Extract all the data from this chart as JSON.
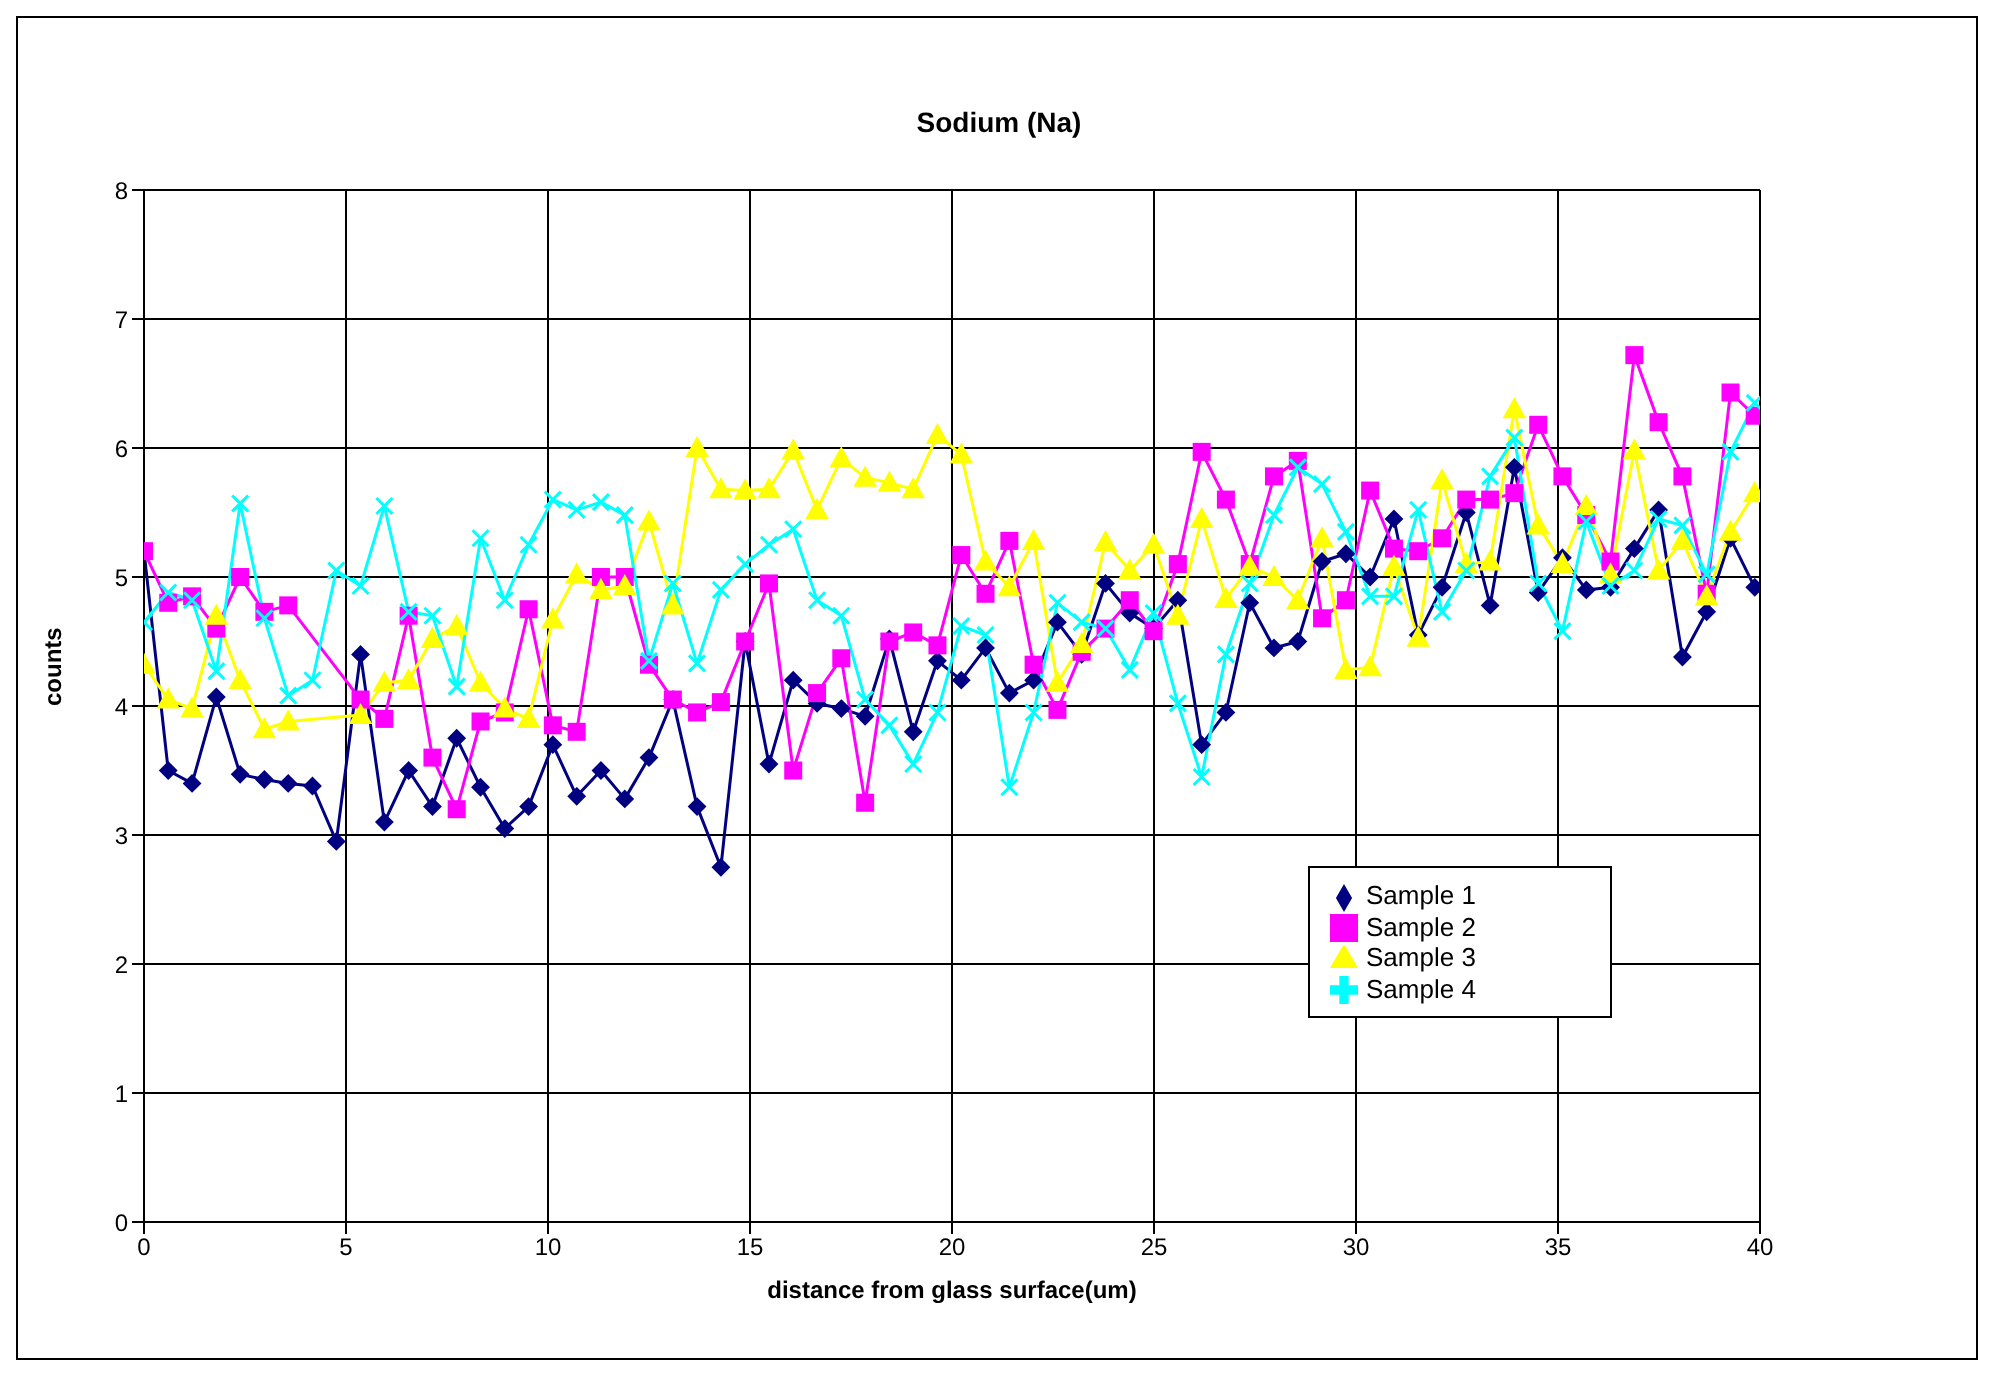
{
  "chart_data": {
    "type": "line",
    "title": "Sodium (Na)",
    "xlabel": "distance from glass surface(um)",
    "ylabel": "counts",
    "xlim": [
      0,
      40
    ],
    "xticks": [
      0,
      5,
      10,
      15,
      20,
      25,
      30,
      35,
      40
    ],
    "ylim": [
      0,
      8
    ],
    "yticks": [
      0,
      1,
      2,
      3,
      4,
      5,
      6,
      7,
      8
    ],
    "grid": true,
    "legend": "bottom right",
    "line_style": "solid",
    "x": [
      0,
      0.6,
      1.19,
      1.79,
      2.38,
      2.98,
      3.57,
      4.17,
      4.76,
      5.36,
      5.95,
      6.55,
      7.14,
      7.74,
      8.33,
      8.93,
      9.52,
      10.12,
      10.71,
      11.31,
      11.9,
      12.5,
      13.09,
      13.69,
      14.28,
      14.88,
      15.47,
      16.07,
      16.66,
      17.26,
      17.85,
      18.45,
      19.04,
      19.64,
      20.23,
      20.83,
      21.42,
      22.02,
      22.61,
      23.21,
      23.8,
      24.4,
      24.99,
      25.59,
      26.18,
      26.78,
      27.37,
      27.97,
      28.56,
      29.16,
      29.75,
      30.35,
      30.94,
      31.54,
      32.13,
      32.73,
      33.32,
      33.92,
      34.51,
      35.11,
      35.7,
      36.3,
      36.89,
      37.49,
      38.08,
      38.68,
      39.27,
      39.87
    ],
    "series": [
      {
        "name": "Sample 1",
        "color": "#000080",
        "marker": "diamond",
        "values": [
          5.2,
          3.5,
          3.4,
          4.07,
          3.47,
          3.43,
          3.4,
          3.38,
          2.95,
          4.4,
          3.1,
          3.5,
          3.22,
          3.75,
          3.37,
          3.05,
          3.22,
          3.7,
          3.3,
          3.5,
          3.28,
          3.6,
          4.05,
          3.22,
          2.75,
          4.5,
          3.55,
          4.2,
          4.02,
          3.98,
          3.92,
          4.52,
          3.8,
          4.35,
          4.2,
          4.45,
          4.1,
          4.2,
          4.65,
          4.4,
          4.95,
          4.72,
          4.6,
          4.82,
          3.7,
          3.95,
          4.8,
          4.45,
          4.5,
          5.12,
          5.18,
          5.0,
          5.45,
          4.55,
          4.92,
          5.5,
          4.78,
          5.85,
          4.88,
          5.15,
          4.9,
          4.92,
          5.22,
          5.52,
          4.38,
          4.73,
          5.3,
          4.92
        ]
      },
      {
        "name": "Sample 2",
        "color": "#ff00ff",
        "marker": "square",
        "x": [
          0,
          0.6,
          1.19,
          1.79,
          2.38,
          2.98,
          3.57,
          5.36,
          5.95,
          6.55,
          7.14,
          7.74,
          8.33,
          8.93,
          9.52,
          10.12,
          10.71,
          11.31,
          11.9,
          12.5,
          13.09,
          13.69,
          14.28,
          14.88,
          15.47,
          16.07,
          16.66,
          17.26,
          17.85,
          18.45,
          19.04,
          19.64,
          20.23,
          20.83,
          21.42,
          22.02,
          22.61,
          23.21,
          23.8,
          24.4,
          24.99,
          25.59,
          26.18,
          26.78,
          27.37,
          27.97,
          28.56,
          29.16,
          29.75,
          30.35,
          30.94,
          31.54,
          32.13,
          32.73,
          33.32,
          33.92,
          34.51,
          35.11,
          35.7,
          36.3,
          36.89,
          37.49,
          38.08,
          38.68,
          39.27,
          39.87
        ],
        "values": [
          5.2,
          4.8,
          4.85,
          4.6,
          5.0,
          4.73,
          4.78,
          4.05,
          3.9,
          4.7,
          3.6,
          3.2,
          3.88,
          3.95,
          4.75,
          3.85,
          3.8,
          5.0,
          5.0,
          4.32,
          4.05,
          3.95,
          4.03,
          4.5,
          4.95,
          3.5,
          4.1,
          4.37,
          3.25,
          4.5,
          4.57,
          4.47,
          5.17,
          4.87,
          5.28,
          4.32,
          3.97,
          4.42,
          4.6,
          4.82,
          4.58,
          5.1,
          5.97,
          5.6,
          5.1,
          5.78,
          5.9,
          4.68,
          4.82,
          5.67,
          5.22,
          5.2,
          5.3,
          5.6,
          5.6,
          5.65,
          6.18,
          5.78,
          5.48,
          5.12,
          6.72,
          6.2,
          5.78,
          4.87,
          6.43,
          6.25
        ]
      },
      {
        "name": "Sample 3",
        "color": "#ffff00",
        "marker": "triangle",
        "x": [
          0,
          0.6,
          1.19,
          1.79,
          2.38,
          2.98,
          3.57,
          5.36,
          5.95,
          6.55,
          7.14,
          7.74,
          8.33,
          8.93,
          9.52,
          10.12,
          10.71,
          11.31,
          11.9,
          12.5,
          13.09,
          13.69,
          14.28,
          14.88,
          15.47,
          16.07,
          16.66,
          17.26,
          17.85,
          18.45,
          19.04,
          19.64,
          20.23,
          20.83,
          21.42,
          22.02,
          22.61,
          23.21,
          23.8,
          24.4,
          24.99,
          25.59,
          26.18,
          26.78,
          27.37,
          27.97,
          28.56,
          29.16,
          29.75,
          30.35,
          30.94,
          31.54,
          32.13,
          32.73,
          33.32,
          33.92,
          34.51,
          35.11,
          35.7,
          36.3,
          36.89,
          37.49,
          38.08,
          38.68,
          39.27,
          39.87
        ],
        "values": [
          4.32,
          4.05,
          3.98,
          4.7,
          4.2,
          3.82,
          3.88,
          3.93,
          4.18,
          4.2,
          4.52,
          4.62,
          4.18,
          3.98,
          3.9,
          4.67,
          5.02,
          4.9,
          4.93,
          5.43,
          4.78,
          6.0,
          5.68,
          5.67,
          5.68,
          5.98,
          5.52,
          5.92,
          5.77,
          5.73,
          5.68,
          6.1,
          5.95,
          5.12,
          4.92,
          5.28,
          4.18,
          4.48,
          5.27,
          5.05,
          5.25,
          4.7,
          5.45,
          4.83,
          5.08,
          5.0,
          4.82,
          5.3,
          4.28,
          4.3,
          5.08,
          4.53,
          5.75,
          5.1,
          5.12,
          6.3,
          5.4,
          5.1,
          5.55,
          5.02,
          5.98,
          5.05,
          5.28,
          4.85,
          5.35,
          5.65
        ]
      },
      {
        "name": "Sample 4",
        "color": "#00ffff",
        "marker": "cross",
        "values": [
          4.65,
          4.88,
          4.82,
          4.27,
          5.57,
          4.68,
          4.08,
          4.2,
          5.05,
          4.93,
          5.55,
          4.73,
          4.7,
          4.15,
          5.3,
          4.82,
          5.25,
          5.6,
          5.52,
          5.58,
          5.48,
          4.35,
          4.95,
          4.33,
          4.9,
          5.1,
          5.25,
          5.37,
          4.82,
          4.7,
          4.05,
          3.85,
          3.55,
          3.95,
          4.62,
          4.55,
          3.37,
          3.95,
          4.8,
          4.65,
          4.6,
          4.28,
          4.72,
          4.02,
          3.45,
          4.4,
          4.95,
          5.48,
          5.85,
          5.72,
          5.35,
          4.85,
          4.85,
          5.52,
          4.73,
          5.05,
          5.78,
          6.08,
          4.95,
          4.58,
          5.43,
          4.93,
          5.05,
          5.45,
          5.4,
          5.02,
          5.97,
          6.35
        ]
      }
    ]
  }
}
